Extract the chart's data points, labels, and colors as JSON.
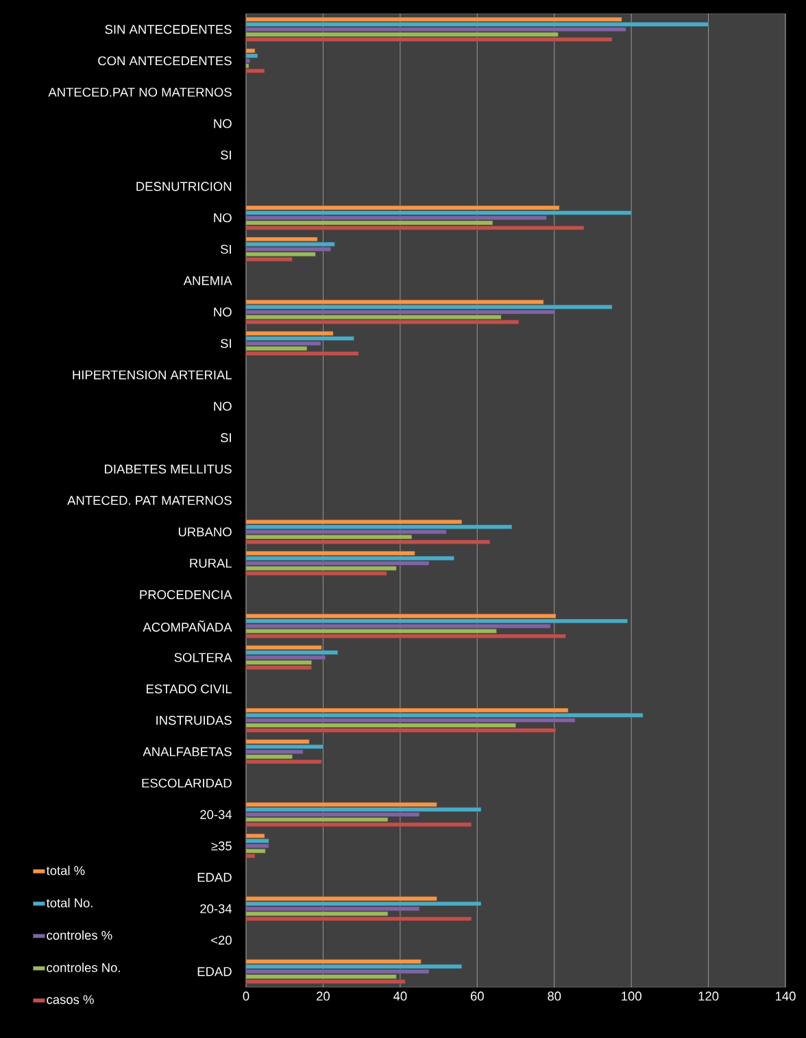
{
  "chart_data": {
    "type": "bar",
    "orientation": "horizontal",
    "categories": [
      "SIN ANTECEDENTES",
      "CON ANTECEDENTES",
      "ANTECED.PAT NO MATERNOS",
      "NO",
      "SI",
      "DESNUTRICION",
      "NO",
      "SI",
      "ANEMIA",
      "NO",
      "SI",
      "HIPERTENSION ARTERIAL",
      "NO",
      "SI",
      "DIABETES MELLITUS",
      "ANTECED. PAT MATERNOS",
      "URBANO",
      "RURAL",
      "PROCEDENCIA",
      "ACOMPAÑADA",
      "SOLTERA",
      "ESTADO CIVIL",
      "INSTRUIDAS",
      "ANALFABETAS",
      "ESCOLARIDAD",
      "20-34",
      "≥35",
      "EDAD",
      "20-34",
      "<20",
      "EDAD"
    ],
    "series": [
      {
        "name": "total %",
        "color": "#f79646",
        "values": [
          97.5,
          2.3,
          null,
          null,
          null,
          null,
          81.3,
          18.5,
          null,
          77.2,
          22.6,
          null,
          null,
          null,
          null,
          null,
          56,
          43.8,
          null,
          80.4,
          19.6,
          null,
          83.6,
          16.4,
          null,
          49.5,
          4.8,
          null,
          49.5,
          null,
          45.4
        ]
      },
      {
        "name": "total No.",
        "color": "#4bacc6",
        "values": [
          120,
          3,
          null,
          null,
          null,
          null,
          100,
          23,
          null,
          95,
          28,
          null,
          null,
          null,
          null,
          null,
          69,
          54,
          null,
          99,
          23.8,
          null,
          103,
          20,
          null,
          61,
          5.9,
          null,
          61,
          null,
          56
        ]
      },
      {
        "name": "controles %",
        "color": "#8064a2",
        "values": [
          98.6,
          1,
          null,
          null,
          null,
          null,
          78,
          22,
          null,
          80.2,
          19.4,
          null,
          null,
          null,
          null,
          null,
          52,
          47.5,
          null,
          79,
          20.6,
          null,
          85.4,
          14.8,
          null,
          45,
          5.9,
          null,
          45,
          null,
          47.5
        ]
      },
      {
        "name": "controles No.",
        "color": "#9bbb59",
        "values": [
          81,
          0.7,
          null,
          null,
          null,
          null,
          64,
          18,
          null,
          66.2,
          15.8,
          null,
          null,
          null,
          null,
          null,
          43,
          39,
          null,
          65,
          17,
          null,
          70,
          12,
          null,
          36.8,
          5,
          null,
          36.8,
          null,
          39
        ]
      },
      {
        "name": "casos %",
        "color": "#c0504d",
        "values": [
          95,
          4.8,
          null,
          null,
          null,
          null,
          87.7,
          12,
          null,
          70.8,
          29.2,
          null,
          null,
          null,
          null,
          null,
          63.3,
          36.5,
          null,
          83,
          17,
          null,
          80.4,
          19.6,
          null,
          58.5,
          2.3,
          null,
          58.5,
          null,
          41.3
        ]
      }
    ],
    "xlim": [
      0,
      140
    ],
    "xticks": [
      0,
      20,
      40,
      60,
      80,
      100,
      120,
      140
    ],
    "grid": "x",
    "legend": "bottom left"
  }
}
